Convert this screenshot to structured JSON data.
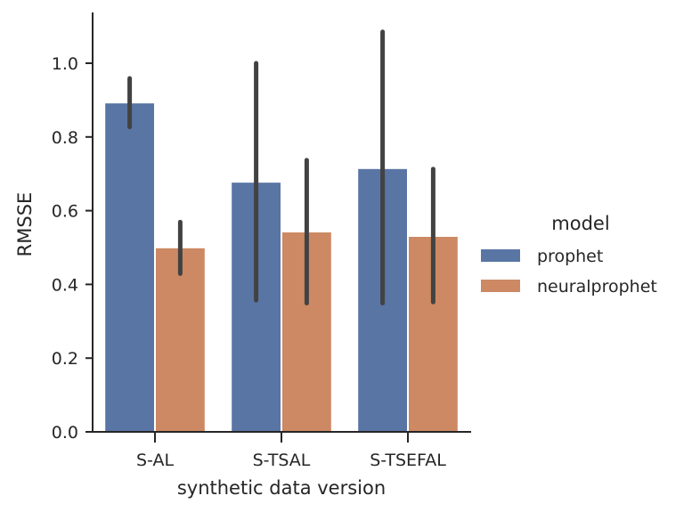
{
  "chart_data": {
    "type": "bar",
    "xlabel": "synthetic data version",
    "ylabel": "RMSSE",
    "categories": [
      "S-AL",
      "S-TSAL",
      "S-TSEFAL"
    ],
    "ylim": [
      0,
      1.135
    ],
    "yticks": [
      0.0,
      0.2,
      0.4,
      0.6,
      0.8,
      1.0
    ],
    "ytick_labels": [
      "0.0",
      "0.2",
      "0.4",
      "0.6",
      "0.8",
      "1.0"
    ],
    "grid": false,
    "legend": {
      "title": "model",
      "placement": "right"
    },
    "series": [
      {
        "name": "prophet",
        "color": "#5975a4",
        "values": [
          0.891,
          0.676,
          0.713
        ],
        "error_low": [
          0.827,
          0.357,
          0.349
        ],
        "error_high": [
          0.959,
          1.0,
          1.085
        ]
      },
      {
        "name": "neuralprophet",
        "color": "#cc8963",
        "values": [
          0.498,
          0.541,
          0.529
        ],
        "error_low": [
          0.429,
          0.349,
          0.352
        ],
        "error_high": [
          0.569,
          0.737,
          0.713
        ]
      }
    ],
    "error_bar_color": "#424242"
  }
}
